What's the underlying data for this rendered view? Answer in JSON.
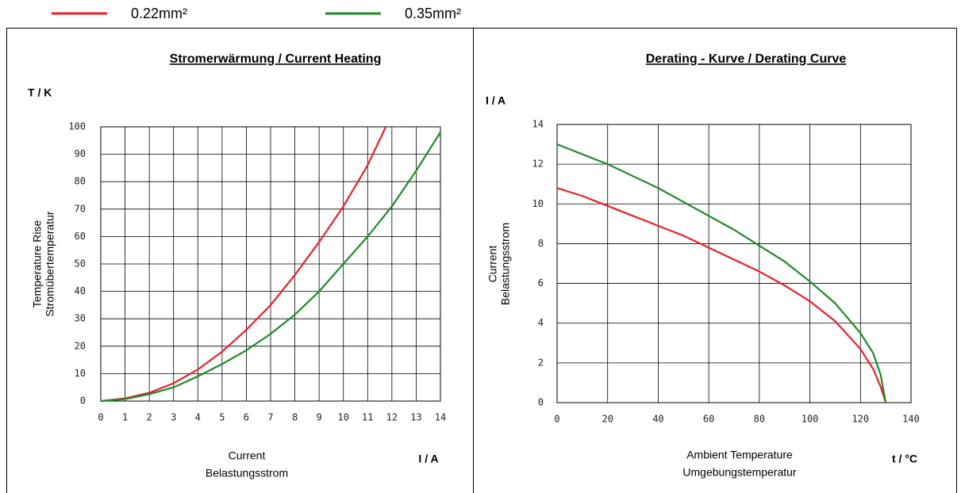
{
  "chart_data": [
    {
      "type": "line",
      "title": "Stromerwärmung / Current Heating",
      "y_unit": "T / K",
      "x_unit": "I / A",
      "ylabel": [
        "Temperature Rise",
        "Stromübertemperatur"
      ],
      "xlabel": [
        "Current",
        "Belastungsstrom"
      ],
      "xlim": [
        0,
        14
      ],
      "xticks": [
        0,
        1,
        2,
        3,
        4,
        5,
        6,
        7,
        8,
        9,
        10,
        11,
        12,
        13,
        14
      ],
      "ylim": [
        0,
        100
      ],
      "yticks": [
        0,
        10,
        20,
        30,
        40,
        50,
        60,
        70,
        80,
        90,
        100
      ],
      "grid": true,
      "series": [
        {
          "name": "0.22mm²",
          "color": "#e8202a",
          "x": [
            0,
            1,
            2,
            3,
            4,
            5,
            6,
            7,
            8,
            9,
            10,
            11,
            11.75
          ],
          "values": [
            0,
            1,
            3,
            6.5,
            11.5,
            18,
            26,
            35,
            46,
            58,
            71,
            86,
            100
          ]
        },
        {
          "name": "0.35mm²",
          "color": "#1f8a2a",
          "x": [
            0,
            1,
            2,
            3,
            4,
            5,
            6,
            7,
            8,
            9,
            10,
            11,
            12,
            13,
            14
          ],
          "values": [
            0,
            0.7,
            2.5,
            5,
            9,
            13.5,
            18.5,
            24.5,
            31.5,
            40,
            50,
            60,
            71,
            84,
            98
          ]
        }
      ]
    },
    {
      "type": "line",
      "title": "Derating - Kurve / Derating Curve",
      "y_unit": "I / A",
      "x_unit": "t / °C",
      "ylabel": [
        "Current",
        "Belastungsstrom"
      ],
      "xlabel": [
        "Ambient Temperature",
        "Umgebungstemperatur"
      ],
      "xlim": [
        0,
        140
      ],
      "xticks": [
        0,
        20,
        40,
        60,
        80,
        100,
        120,
        140
      ],
      "ylim": [
        0,
        14
      ],
      "yticks": [
        0,
        2,
        4,
        6,
        8,
        10,
        12,
        14
      ],
      "grid": true,
      "series": [
        {
          "color": "#e8202a",
          "x": [
            0,
            10,
            20,
            30,
            40,
            50,
            60,
            70,
            80,
            90,
            100,
            110,
            120,
            125,
            128,
            130
          ],
          "values": [
            10.8,
            10.4,
            9.9,
            9.4,
            8.9,
            8.4,
            7.8,
            7.2,
            6.6,
            5.9,
            5.1,
            4.1,
            2.7,
            1.7,
            0.8,
            0
          ]
        },
        {
          "color": "#1f8a2a",
          "x": [
            0,
            10,
            20,
            30,
            40,
            50,
            60,
            70,
            80,
            90,
            100,
            110,
            120,
            125,
            128,
            130
          ],
          "values": [
            13,
            12.5,
            12,
            11.4,
            10.8,
            10.1,
            9.4,
            8.7,
            7.9,
            7.1,
            6.1,
            5,
            3.5,
            2.5,
            1.4,
            0
          ]
        }
      ]
    }
  ]
}
